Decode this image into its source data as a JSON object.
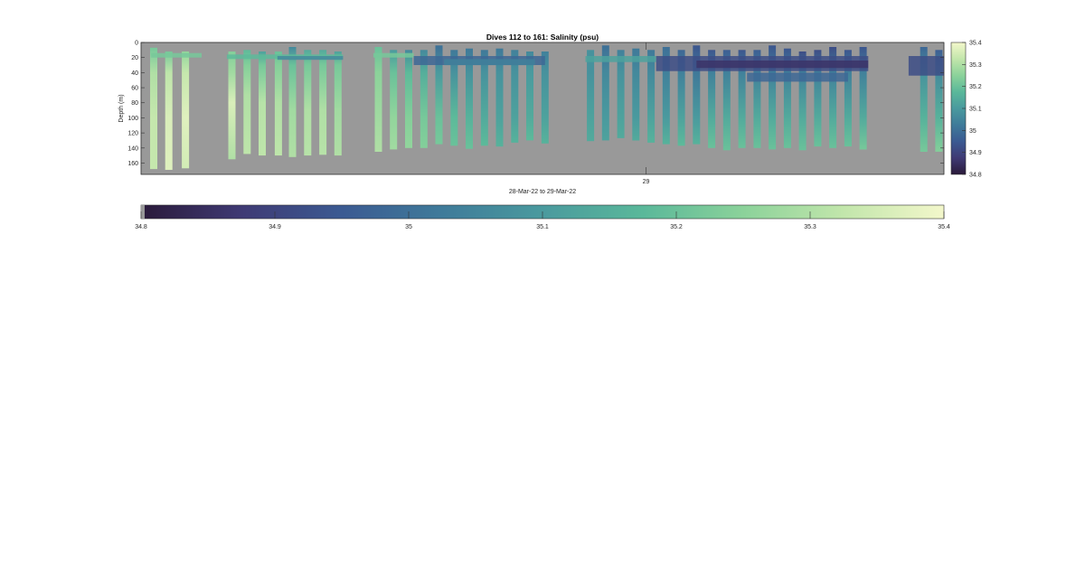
{
  "chart_data": {
    "type": "heatmap",
    "title": "Dives 112 to 161: Salinity (psu)",
    "xlabel": "28-Mar-22 to 29-Mar-22",
    "ylabel": "Depth (m)",
    "x_ticks": [
      {
        "value": 29,
        "label": "29"
      }
    ],
    "x_range_days": [
      28.0,
      29.59
    ],
    "ylim": [
      0,
      175
    ],
    "y_reversed": true,
    "y_ticks": [
      0,
      20,
      40,
      60,
      80,
      100,
      120,
      140,
      160
    ],
    "colorbar": {
      "clim": [
        34.8,
        35.4
      ],
      "side_ticks": [
        35.4,
        35.3,
        35.2,
        35.1,
        35.0,
        34.9,
        34.8
      ],
      "side_tick_labels": [
        "35.4",
        "35.3",
        "35.2",
        "35.1",
        "35",
        "34.9",
        "34.8"
      ],
      "bottom_ticks": [
        34.8,
        34.9,
        35.0,
        35.1,
        35.2,
        35.3,
        35.4
      ],
      "bottom_tick_labels": [
        "34.8",
        "34.9",
        "35",
        "35.1",
        "35.2",
        "35.3",
        "35.4"
      ]
    },
    "background_color": "#999999",
    "colormap": [
      "#2a1a3a",
      "#3f3a74",
      "#3b5a92",
      "#3f7b9a",
      "#4a9a9e",
      "#5ab89a",
      "#8bd29a",
      "#c2e6ab",
      "#f3f7cb"
    ],
    "casts": [
      {
        "t": 28.025,
        "top": 7,
        "bottom": 168,
        "profile": [
          [
            0,
            35.22
          ],
          [
            40,
            35.3
          ],
          [
            100,
            35.33
          ],
          [
            168,
            35.33
          ]
        ]
      },
      {
        "t": 28.055,
        "top": 12,
        "bottom": 169,
        "profile": [
          [
            0,
            35.22
          ],
          [
            40,
            35.32
          ],
          [
            100,
            35.36
          ],
          [
            169,
            35.37
          ]
        ]
      },
      {
        "t": 28.088,
        "top": 12,
        "bottom": 167,
        "profile": [
          [
            0,
            35.26
          ],
          [
            40,
            35.33
          ],
          [
            100,
            35.37
          ],
          [
            167,
            35.35
          ]
        ]
      },
      {
        "t": 28.18,
        "top": 12,
        "bottom": 155,
        "profile": [
          [
            0,
            35.24
          ],
          [
            40,
            35.28
          ],
          [
            80,
            35.36
          ],
          [
            155,
            35.3
          ]
        ]
      },
      {
        "t": 28.21,
        "top": 10,
        "bottom": 148,
        "profile": [
          [
            0,
            35.18
          ],
          [
            30,
            35.24
          ],
          [
            70,
            35.3
          ],
          [
            148,
            35.32
          ]
        ]
      },
      {
        "t": 28.24,
        "top": 12,
        "bottom": 150,
        "profile": [
          [
            0,
            35.12
          ],
          [
            30,
            35.22
          ],
          [
            80,
            35.31
          ],
          [
            150,
            35.32
          ]
        ]
      },
      {
        "t": 28.272,
        "top": 12,
        "bottom": 150,
        "profile": [
          [
            0,
            35.2
          ],
          [
            30,
            35.24
          ],
          [
            80,
            35.3
          ],
          [
            150,
            35.32
          ]
        ]
      },
      {
        "t": 28.3,
        "top": 6,
        "bottom": 152,
        "profile": [
          [
            0,
            35.06
          ],
          [
            30,
            35.2
          ],
          [
            90,
            35.28
          ],
          [
            152,
            35.3
          ]
        ]
      },
      {
        "t": 28.33,
        "top": 10,
        "bottom": 150,
        "profile": [
          [
            0,
            35.14
          ],
          [
            30,
            35.22
          ],
          [
            90,
            35.3
          ],
          [
            150,
            35.31
          ]
        ]
      },
      {
        "t": 28.36,
        "top": 10,
        "bottom": 149,
        "profile": [
          [
            0,
            35.14
          ],
          [
            30,
            35.22
          ],
          [
            90,
            35.3
          ],
          [
            149,
            35.31
          ]
        ]
      },
      {
        "t": 28.39,
        "top": 12,
        "bottom": 150,
        "profile": [
          [
            0,
            35.12
          ],
          [
            30,
            35.22
          ],
          [
            90,
            35.28
          ],
          [
            150,
            35.3
          ]
        ]
      },
      {
        "t": 28.47,
        "top": 6,
        "bottom": 145,
        "profile": [
          [
            0,
            35.2
          ],
          [
            40,
            35.25
          ],
          [
            100,
            35.28
          ],
          [
            145,
            35.3
          ]
        ]
      },
      {
        "t": 28.5,
        "top": 10,
        "bottom": 142,
        "profile": [
          [
            0,
            35.1
          ],
          [
            40,
            35.2
          ],
          [
            100,
            35.26
          ],
          [
            142,
            35.28
          ]
        ]
      },
      {
        "t": 28.53,
        "top": 10,
        "bottom": 140,
        "profile": [
          [
            0,
            35.06
          ],
          [
            40,
            35.18
          ],
          [
            100,
            35.24
          ],
          [
            140,
            35.26
          ]
        ]
      },
      {
        "t": 28.56,
        "top": 10,
        "bottom": 140,
        "profile": [
          [
            0,
            35.06
          ],
          [
            40,
            35.15
          ],
          [
            100,
            35.22
          ],
          [
            140,
            35.24
          ]
        ]
      },
      {
        "t": 28.59,
        "top": 4,
        "bottom": 135,
        "profile": [
          [
            0,
            35.0
          ],
          [
            40,
            35.1
          ],
          [
            100,
            35.2
          ],
          [
            135,
            35.22
          ]
        ]
      },
      {
        "t": 28.62,
        "top": 10,
        "bottom": 137,
        "profile": [
          [
            0,
            35.02
          ],
          [
            40,
            35.08
          ],
          [
            100,
            35.18
          ],
          [
            137,
            35.2
          ]
        ]
      },
      {
        "t": 28.65,
        "top": 8,
        "bottom": 141,
        "profile": [
          [
            0,
            35.02
          ],
          [
            40,
            35.08
          ],
          [
            100,
            35.16
          ],
          [
            141,
            35.2
          ]
        ]
      },
      {
        "t": 28.68,
        "top": 10,
        "bottom": 137,
        "profile": [
          [
            0,
            35.02
          ],
          [
            40,
            35.08
          ],
          [
            100,
            35.14
          ],
          [
            137,
            35.18
          ]
        ]
      },
      {
        "t": 28.71,
        "top": 8,
        "bottom": 138,
        "profile": [
          [
            0,
            35.02
          ],
          [
            40,
            35.08
          ],
          [
            100,
            35.12
          ],
          [
            138,
            35.16
          ]
        ]
      },
      {
        "t": 28.74,
        "top": 10,
        "bottom": 133,
        "profile": [
          [
            0,
            35.04
          ],
          [
            40,
            35.08
          ],
          [
            100,
            35.12
          ],
          [
            133,
            35.16
          ]
        ]
      },
      {
        "t": 28.77,
        "top": 12,
        "bottom": 130,
        "profile": [
          [
            0,
            35.06
          ],
          [
            40,
            35.1
          ],
          [
            100,
            35.14
          ],
          [
            130,
            35.18
          ]
        ]
      },
      {
        "t": 28.8,
        "top": 12,
        "bottom": 134,
        "profile": [
          [
            0,
            35.04
          ],
          [
            40,
            35.08
          ],
          [
            100,
            35.12
          ],
          [
            134,
            35.16
          ]
        ]
      },
      {
        "t": 28.89,
        "top": 10,
        "bottom": 131,
        "profile": [
          [
            0,
            35.08
          ],
          [
            40,
            35.08
          ],
          [
            100,
            35.12
          ],
          [
            131,
            35.14
          ]
        ]
      },
      {
        "t": 28.92,
        "top": 4,
        "bottom": 130,
        "profile": [
          [
            0,
            35.0
          ],
          [
            40,
            35.06
          ],
          [
            100,
            35.1
          ],
          [
            130,
            35.12
          ]
        ]
      },
      {
        "t": 28.95,
        "top": 10,
        "bottom": 127,
        "profile": [
          [
            0,
            35.04
          ],
          [
            40,
            35.08
          ],
          [
            100,
            35.12
          ],
          [
            127,
            35.14
          ]
        ]
      },
      {
        "t": 28.98,
        "top": 8,
        "bottom": 130,
        "profile": [
          [
            0,
            35.02
          ],
          [
            40,
            35.06
          ],
          [
            100,
            35.1
          ],
          [
            130,
            35.14
          ]
        ]
      },
      {
        "t": 29.01,
        "top": 10,
        "bottom": 133,
        "profile": [
          [
            0,
            35.02
          ],
          [
            40,
            35.06
          ],
          [
            100,
            35.12
          ],
          [
            133,
            35.16
          ]
        ]
      },
      {
        "t": 29.04,
        "top": 6,
        "bottom": 135,
        "profile": [
          [
            0,
            35.0
          ],
          [
            40,
            35.04
          ],
          [
            100,
            35.1
          ],
          [
            135,
            35.16
          ]
        ]
      },
      {
        "t": 29.07,
        "top": 10,
        "bottom": 137,
        "profile": [
          [
            0,
            34.98
          ],
          [
            40,
            35.04
          ],
          [
            100,
            35.12
          ],
          [
            137,
            35.18
          ]
        ]
      },
      {
        "t": 29.1,
        "top": 4,
        "bottom": 135,
        "profile": [
          [
            0,
            34.94
          ],
          [
            40,
            35.02
          ],
          [
            100,
            35.1
          ],
          [
            135,
            35.16
          ]
        ]
      },
      {
        "t": 29.13,
        "top": 10,
        "bottom": 140,
        "profile": [
          [
            0,
            34.94
          ],
          [
            40,
            35.04
          ],
          [
            100,
            35.14
          ],
          [
            140,
            35.2
          ]
        ]
      },
      {
        "t": 29.16,
        "top": 10,
        "bottom": 143,
        "profile": [
          [
            0,
            34.96
          ],
          [
            40,
            35.04
          ],
          [
            100,
            35.14
          ],
          [
            143,
            35.2
          ]
        ]
      },
      {
        "t": 29.19,
        "top": 10,
        "bottom": 140,
        "profile": [
          [
            0,
            34.94
          ],
          [
            40,
            35.04
          ],
          [
            100,
            35.14
          ],
          [
            140,
            35.2
          ]
        ]
      },
      {
        "t": 29.22,
        "top": 10,
        "bottom": 140,
        "profile": [
          [
            0,
            34.96
          ],
          [
            40,
            35.04
          ],
          [
            100,
            35.14
          ],
          [
            140,
            35.2
          ]
        ]
      },
      {
        "t": 29.25,
        "top": 4,
        "bottom": 142,
        "profile": [
          [
            0,
            34.94
          ],
          [
            40,
            35.04
          ],
          [
            100,
            35.14
          ],
          [
            142,
            35.2
          ]
        ]
      },
      {
        "t": 29.28,
        "top": 8,
        "bottom": 140,
        "profile": [
          [
            0,
            34.94
          ],
          [
            40,
            35.04
          ],
          [
            100,
            35.14
          ],
          [
            140,
            35.2
          ]
        ]
      },
      {
        "t": 29.31,
        "top": 12,
        "bottom": 143,
        "profile": [
          [
            0,
            34.92
          ],
          [
            40,
            35.04
          ],
          [
            100,
            35.14
          ],
          [
            143,
            35.2
          ]
        ]
      },
      {
        "t": 29.34,
        "top": 10,
        "bottom": 138,
        "profile": [
          [
            0,
            34.92
          ],
          [
            40,
            35.04
          ],
          [
            100,
            35.14
          ],
          [
            138,
            35.2
          ]
        ]
      },
      {
        "t": 29.37,
        "top": 6,
        "bottom": 140,
        "profile": [
          [
            0,
            34.92
          ],
          [
            40,
            35.04
          ],
          [
            100,
            35.14
          ],
          [
            140,
            35.2
          ]
        ]
      },
      {
        "t": 29.4,
        "top": 10,
        "bottom": 138,
        "profile": [
          [
            0,
            34.94
          ],
          [
            40,
            35.04
          ],
          [
            100,
            35.14
          ],
          [
            138,
            35.2
          ]
        ]
      },
      {
        "t": 29.43,
        "top": 6,
        "bottom": 142,
        "profile": [
          [
            0,
            34.94
          ],
          [
            40,
            35.04
          ],
          [
            100,
            35.14
          ],
          [
            142,
            35.22
          ]
        ]
      },
      {
        "t": 29.55,
        "top": 6,
        "bottom": 145,
        "profile": [
          [
            0,
            34.98
          ],
          [
            40,
            35.08
          ],
          [
            100,
            35.16
          ],
          [
            145,
            35.22
          ]
        ]
      },
      {
        "t": 29.58,
        "top": 10,
        "bottom": 145,
        "profile": [
          [
            0,
            34.96
          ],
          [
            40,
            35.06
          ],
          [
            100,
            35.16
          ],
          [
            145,
            35.24
          ]
        ]
      }
    ],
    "bands": [
      {
        "t0": 28.02,
        "t1": 28.12,
        "top": 14,
        "bottom": 20,
        "value": 35.22
      },
      {
        "t0": 28.17,
        "t1": 28.4,
        "top": 16,
        "bottom": 22,
        "value": 35.18
      },
      {
        "t0": 28.27,
        "t1": 28.4,
        "top": 18,
        "bottom": 23,
        "value": 35.06
      },
      {
        "t0": 28.46,
        "t1": 28.54,
        "top": 14,
        "bottom": 20,
        "value": 35.22
      },
      {
        "t0": 28.54,
        "t1": 28.8,
        "top": 18,
        "bottom": 30,
        "value": 34.98
      },
      {
        "t0": 28.6,
        "t1": 28.78,
        "top": 22,
        "bottom": 30,
        "value": 35.04
      },
      {
        "t0": 28.88,
        "t1": 29.02,
        "top": 18,
        "bottom": 26,
        "value": 35.12
      },
      {
        "t0": 29.02,
        "t1": 29.44,
        "top": 18,
        "bottom": 38,
        "value": 34.92
      },
      {
        "t0": 29.1,
        "t1": 29.44,
        "top": 24,
        "bottom": 34,
        "value": 34.86
      },
      {
        "t0": 29.2,
        "t1": 29.4,
        "top": 40,
        "bottom": 52,
        "value": 34.98
      },
      {
        "t0": 29.52,
        "t1": 29.59,
        "top": 18,
        "bottom": 44,
        "value": 34.92
      }
    ]
  }
}
